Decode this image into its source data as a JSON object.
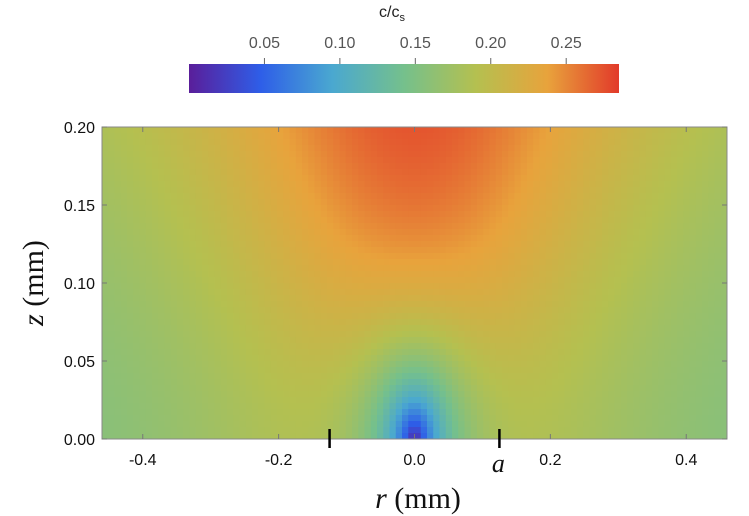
{
  "chart_data": {
    "type": "heatmap",
    "title": "",
    "colorbar": {
      "label_main": "c/c",
      "label_sub": "s",
      "range": [
        0.0,
        0.285
      ],
      "ticks": [
        0.05,
        0.1,
        0.15,
        0.2,
        0.25
      ],
      "tick_labels": [
        "0.05",
        "0.10",
        "0.15",
        "0.20",
        "0.25"
      ],
      "position": "top",
      "colors": [
        "#5a1e9a",
        "#2e5ee8",
        "#4aa8d0",
        "#75c08c",
        "#b4c050",
        "#e8a33c",
        "#e23a2a"
      ]
    },
    "xlabel_var": "r",
    "xlabel_unit": " (mm)",
    "ylabel_var": "z",
    "ylabel_unit": " (mm)",
    "xlim": [
      -0.46,
      0.46
    ],
    "ylim": [
      0.0,
      0.2
    ],
    "xticks": [
      -0.4,
      -0.2,
      0.0,
      0.2,
      0.4
    ],
    "xtick_labels": [
      "-0.4",
      "-0.2",
      "0.0",
      "0.2",
      "0.4"
    ],
    "yticks": [
      0.0,
      0.05,
      0.1,
      0.15,
      0.2
    ],
    "ytick_labels": [
      "0.00",
      "0.05",
      "0.10",
      "0.15",
      "0.20"
    ],
    "source_marks": [
      -0.125,
      0.125
    ],
    "annotation": {
      "text": "a",
      "x": 0.125
    },
    "field": {
      "description": "concentration is lowest under the source near (r=0, z=0) and rises with distance, reaching the top of the scale at z=0.20",
      "center_value": 0.005,
      "top_value": 0.285,
      "far_bottom_value": 0.14
    }
  }
}
